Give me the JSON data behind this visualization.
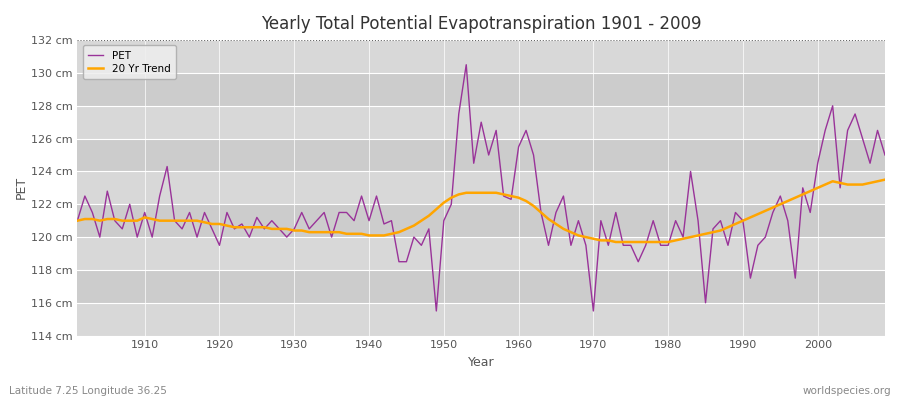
{
  "title": "Yearly Total Potential Evapotranspiration 1901 - 2009",
  "xlabel": "Year",
  "ylabel": "PET",
  "lat_lon_label": "Latitude 7.25 Longitude 36.25",
  "watermark": "worldspecies.org",
  "ylim": [
    114,
    132
  ],
  "ytick_step": 2,
  "xlim": [
    1901,
    2009
  ],
  "pet_color": "#993399",
  "trend_color": "#FFA500",
  "bg_color": "#ffffff",
  "plot_bg_color": "#e8e8e8",
  "band_color_1": "#e0e0e0",
  "band_color_2": "#d0d0d0",
  "grid_color": "#ffffff",
  "years": [
    1901,
    1902,
    1903,
    1904,
    1905,
    1906,
    1907,
    1908,
    1909,
    1910,
    1911,
    1912,
    1913,
    1914,
    1915,
    1916,
    1917,
    1918,
    1919,
    1920,
    1921,
    1922,
    1923,
    1924,
    1925,
    1926,
    1927,
    1928,
    1929,
    1930,
    1931,
    1932,
    1933,
    1934,
    1935,
    1936,
    1937,
    1938,
    1939,
    1940,
    1941,
    1942,
    1943,
    1944,
    1945,
    1946,
    1947,
    1948,
    1949,
    1950,
    1951,
    1952,
    1953,
    1954,
    1955,
    1956,
    1957,
    1958,
    1959,
    1960,
    1961,
    1962,
    1963,
    1964,
    1965,
    1966,
    1967,
    1968,
    1969,
    1970,
    1971,
    1972,
    1973,
    1974,
    1975,
    1976,
    1977,
    1978,
    1979,
    1980,
    1981,
    1982,
    1983,
    1984,
    1985,
    1986,
    1987,
    1988,
    1989,
    1990,
    1991,
    1992,
    1993,
    1994,
    1995,
    1996,
    1997,
    1998,
    1999,
    2000,
    2001,
    2002,
    2003,
    2004,
    2005,
    2006,
    2007,
    2008,
    2009
  ],
  "pet_values": [
    121.0,
    122.5,
    121.5,
    120.0,
    122.8,
    121.0,
    120.5,
    122.0,
    120.0,
    121.5,
    120.0,
    122.5,
    124.3,
    121.0,
    120.5,
    121.5,
    120.0,
    121.5,
    120.5,
    119.5,
    121.5,
    120.5,
    120.8,
    120.0,
    121.2,
    120.5,
    121.0,
    120.5,
    120.0,
    120.5,
    121.5,
    120.5,
    121.0,
    121.5,
    120.0,
    121.5,
    121.5,
    121.0,
    122.5,
    121.0,
    122.5,
    120.8,
    121.0,
    118.5,
    118.5,
    120.0,
    119.5,
    120.5,
    115.5,
    121.0,
    122.0,
    127.5,
    130.5,
    124.5,
    127.0,
    125.0,
    126.5,
    122.5,
    122.3,
    125.5,
    126.5,
    125.0,
    121.5,
    119.5,
    121.5,
    122.5,
    119.5,
    121.0,
    119.5,
    115.5,
    121.0,
    119.5,
    121.5,
    119.5,
    119.5,
    118.5,
    119.5,
    121.0,
    119.5,
    119.5,
    121.0,
    120.0,
    124.0,
    121.0,
    116.0,
    120.5,
    121.0,
    119.5,
    121.5,
    121.0,
    117.5,
    119.5,
    120.0,
    121.5,
    122.5,
    121.0,
    117.5,
    123.0,
    121.5,
    124.5,
    126.5,
    128.0,
    123.0,
    126.5,
    127.5,
    126.0,
    124.5,
    126.5,
    125.0
  ],
  "trend_values": [
    121.0,
    121.1,
    121.1,
    121.0,
    121.1,
    121.1,
    121.0,
    121.0,
    121.0,
    121.2,
    121.1,
    121.0,
    121.0,
    121.0,
    121.0,
    121.0,
    121.0,
    120.9,
    120.8,
    120.8,
    120.7,
    120.6,
    120.6,
    120.6,
    120.6,
    120.6,
    120.5,
    120.5,
    120.5,
    120.4,
    120.4,
    120.3,
    120.3,
    120.3,
    120.3,
    120.3,
    120.2,
    120.2,
    120.2,
    120.1,
    120.1,
    120.1,
    120.2,
    120.3,
    120.5,
    120.7,
    121.0,
    121.3,
    121.7,
    122.1,
    122.4,
    122.6,
    122.7,
    122.7,
    122.7,
    122.7,
    122.7,
    122.6,
    122.5,
    122.4,
    122.2,
    121.9,
    121.5,
    121.1,
    120.8,
    120.5,
    120.3,
    120.1,
    120.0,
    119.9,
    119.8,
    119.8,
    119.7,
    119.7,
    119.7,
    119.7,
    119.7,
    119.7,
    119.7,
    119.7,
    119.8,
    119.9,
    120.0,
    120.1,
    120.2,
    120.3,
    120.4,
    120.6,
    120.8,
    121.0,
    121.2,
    121.4,
    121.6,
    121.8,
    122.0,
    122.2,
    122.4,
    122.6,
    122.8,
    123.0,
    123.2,
    123.4,
    123.3,
    123.2,
    123.2,
    123.2,
    123.3,
    123.4,
    123.5
  ]
}
